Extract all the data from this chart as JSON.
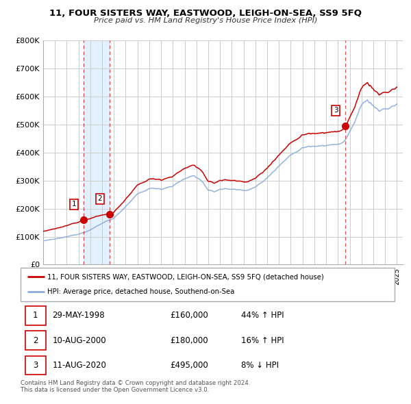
{
  "title": "11, FOUR SISTERS WAY, EASTWOOD, LEIGH-ON-SEA, SS9 5FQ",
  "subtitle": "Price paid vs. HM Land Registry's House Price Index (HPI)",
  "ylim": [
    0,
    800000
  ],
  "yticks": [
    0,
    100000,
    200000,
    300000,
    400000,
    500000,
    600000,
    700000,
    800000
  ],
  "ytick_labels": [
    "£0",
    "£100K",
    "£200K",
    "£300K",
    "£400K",
    "£500K",
    "£600K",
    "£700K",
    "£800K"
  ],
  "xlim_start": 1995.0,
  "xlim_end": 2025.5,
  "sale_color": "#cc0000",
  "hpi_color": "#88aadd",
  "sale_label": "11, FOUR SISTERS WAY, EASTWOOD, LEIGH-ON-SEA, SS9 5FQ (detached house)",
  "hpi_label": "HPI: Average price, detached house, Southend-on-Sea",
  "transactions": [
    {
      "num": 1,
      "date_label": "29-MAY-1998",
      "date_x": 1998.41,
      "price": 160000,
      "pct": "44%",
      "direction": "↑"
    },
    {
      "num": 2,
      "date_label": "10-AUG-2000",
      "date_x": 2000.61,
      "price": 180000,
      "pct": "16%",
      "direction": "↑"
    },
    {
      "num": 3,
      "date_label": "11-AUG-2020",
      "date_x": 2020.61,
      "price": 495000,
      "pct": "8%",
      "direction": "↓"
    }
  ],
  "footnote": "Contains HM Land Registry data © Crown copyright and database right 2024.\nThis data is licensed under the Open Government Licence v3.0.",
  "background_color": "#ffffff",
  "plot_bg_color": "#ffffff",
  "grid_color": "#cccccc",
  "shade_color": "#ddeeff"
}
